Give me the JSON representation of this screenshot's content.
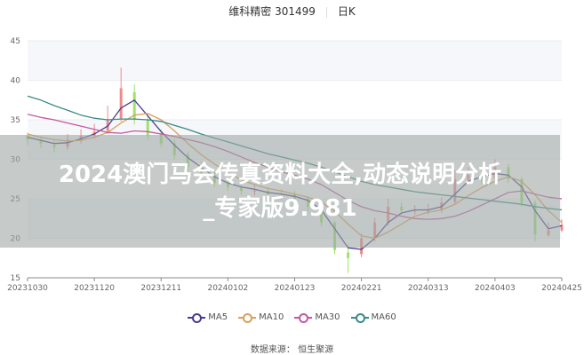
{
  "header": {
    "stock": "维科精密 301499",
    "period": "日K"
  },
  "banner": {
    "line1": "2024澳门马会传真资料大全,动态说明分析",
    "line2": "_专家版9.981"
  },
  "source": "数据来源：  恒生聚源",
  "colors": {
    "up": "#f08a8a",
    "down": "#9ee26e",
    "MA5": "#4a3c8c",
    "MA10": "#d9a05c",
    "MA30": "#c05aa0",
    "MA60": "#3a8a86",
    "grid": "#eceef2"
  },
  "chart_data": {
    "type": "candlestick",
    "ylim": [
      15,
      45
    ],
    "yticks": [
      15,
      20,
      25,
      30,
      35,
      40,
      45
    ],
    "xtick_labels": [
      "20231030",
      "20231120",
      "20231211",
      "20240102",
      "20240123",
      "20240221",
      "20240313",
      "20240403",
      "20240425"
    ],
    "grid": true,
    "legend_placement": "bottom",
    "candles": [
      [
        33,
        32.5,
        31.8,
        33.4
      ],
      [
        32.5,
        32,
        31.4,
        33
      ],
      [
        31.8,
        31.5,
        30.9,
        32.4
      ],
      [
        31.6,
        32.5,
        31.2,
        33.2
      ],
      [
        32.4,
        33,
        32,
        33.8
      ],
      [
        33,
        33.5,
        32.6,
        34.5
      ],
      [
        33.6,
        35,
        33.2,
        36.8
      ],
      [
        35.2,
        39,
        34.8,
        41.6
      ],
      [
        38.5,
        35,
        34.4,
        39.5
      ],
      [
        35,
        33,
        32.5,
        35.6
      ],
      [
        33.2,
        32,
        31.5,
        33.8
      ],
      [
        32,
        30.5,
        30,
        32.6
      ],
      [
        30.6,
        29,
        28.5,
        31
      ],
      [
        29.2,
        28,
        27.5,
        29.8
      ],
      [
        28,
        27,
        26.5,
        28.6
      ],
      [
        27,
        26.5,
        26,
        27.4
      ],
      [
        26.5,
        26,
        25.5,
        27
      ],
      [
        26,
        26,
        25.4,
        26.8
      ],
      [
        26,
        25.5,
        25,
        26.5
      ],
      [
        25.6,
        25.5,
        24.9,
        26.2
      ],
      [
        25.5,
        25,
        24.5,
        26
      ],
      [
        25,
        24,
        23.4,
        25.3
      ],
      [
        24,
        22,
        21.5,
        24.3
      ],
      [
        22,
        18.5,
        18,
        22.2
      ],
      [
        18.2,
        17.5,
        15.6,
        19.2
      ],
      [
        18,
        20,
        17.6,
        20.6
      ],
      [
        20,
        22,
        19.6,
        22.6
      ],
      [
        22,
        24,
        21.6,
        25
      ],
      [
        24,
        23.5,
        23,
        24.6
      ],
      [
        23.5,
        23.5,
        23,
        24.2
      ],
      [
        23.4,
        23.5,
        23,
        24.4
      ],
      [
        23.6,
        24.5,
        23.2,
        25.2
      ],
      [
        24.6,
        27.5,
        24.4,
        28.6
      ],
      [
        27.4,
        28,
        27,
        29
      ],
      [
        28,
        27.5,
        26.8,
        28.6
      ],
      [
        27.6,
        29,
        27.2,
        30
      ],
      [
        29,
        27.5,
        27,
        29.4
      ],
      [
        27.5,
        24.5,
        24,
        27.8
      ],
      [
        24.5,
        20.5,
        19.6,
        24.8
      ],
      [
        20.4,
        21,
        20.2,
        22
      ],
      [
        21,
        21.7,
        20.8,
        22.4
      ]
    ],
    "series": [
      {
        "name": "MA5",
        "values": [
          32.8,
          32.4,
          32,
          32.1,
          32.6,
          33.2,
          34.2,
          36.5,
          37.5,
          35.5,
          33.5,
          31.8,
          30.2,
          29,
          27.8,
          27,
          26.5,
          26.2,
          25.8,
          25.6,
          25.3,
          24.8,
          23.6,
          21.2,
          18.8,
          18.6,
          20,
          22,
          23.2,
          23.6,
          23.6,
          24,
          25.6,
          27.2,
          27.8,
          28.2,
          28,
          26.5,
          23.5,
          21.2,
          21.6
        ]
      },
      {
        "name": "MA10",
        "values": [
          33.2,
          32.8,
          32.5,
          32.3,
          32.4,
          32.8,
          33.4,
          34.6,
          35.6,
          35.8,
          35,
          33.6,
          32,
          30.6,
          29.4,
          28.3,
          27.4,
          26.8,
          26.3,
          26,
          25.6,
          25.2,
          24.6,
          23.4,
          21.8,
          20.3,
          20,
          20.8,
          21.8,
          22.8,
          23.3,
          23.6,
          24.3,
          25.4,
          26.4,
          27.2,
          27.8,
          27.2,
          25.5,
          23.5,
          22
        ]
      },
      {
        "name": "MA30",
        "values": [
          35.7,
          35.3,
          35,
          34.6,
          34.2,
          33.8,
          33.4,
          33.3,
          33.6,
          33.5,
          33.2,
          32.9,
          32.5,
          32.1,
          31.6,
          31,
          30.3,
          29.6,
          29,
          28.4,
          28,
          27.5,
          26.8,
          25.8,
          24.8,
          24,
          23.5,
          23.2,
          22.8,
          22.5,
          22.4,
          22.5,
          22.8,
          23.4,
          24.2,
          25,
          25.8,
          26,
          25.6,
          25.2,
          25
        ]
      },
      {
        "name": "MA60",
        "values": [
          38,
          37.5,
          36.8,
          36.2,
          35.6,
          35.2,
          35,
          35.1,
          35.1,
          35,
          34.8,
          34.3,
          33.8,
          33.2,
          32.7,
          32.2,
          31.7,
          31.2,
          30.7,
          30.3,
          29.9,
          29.5,
          29,
          28.4,
          27.8,
          27.2,
          26.8,
          26.5,
          26.2,
          25.9,
          25.7,
          25.5,
          25.3,
          25.1,
          24.9,
          24.7,
          24.5,
          24.3,
          24,
          23.8,
          23.6
        ]
      }
    ]
  }
}
